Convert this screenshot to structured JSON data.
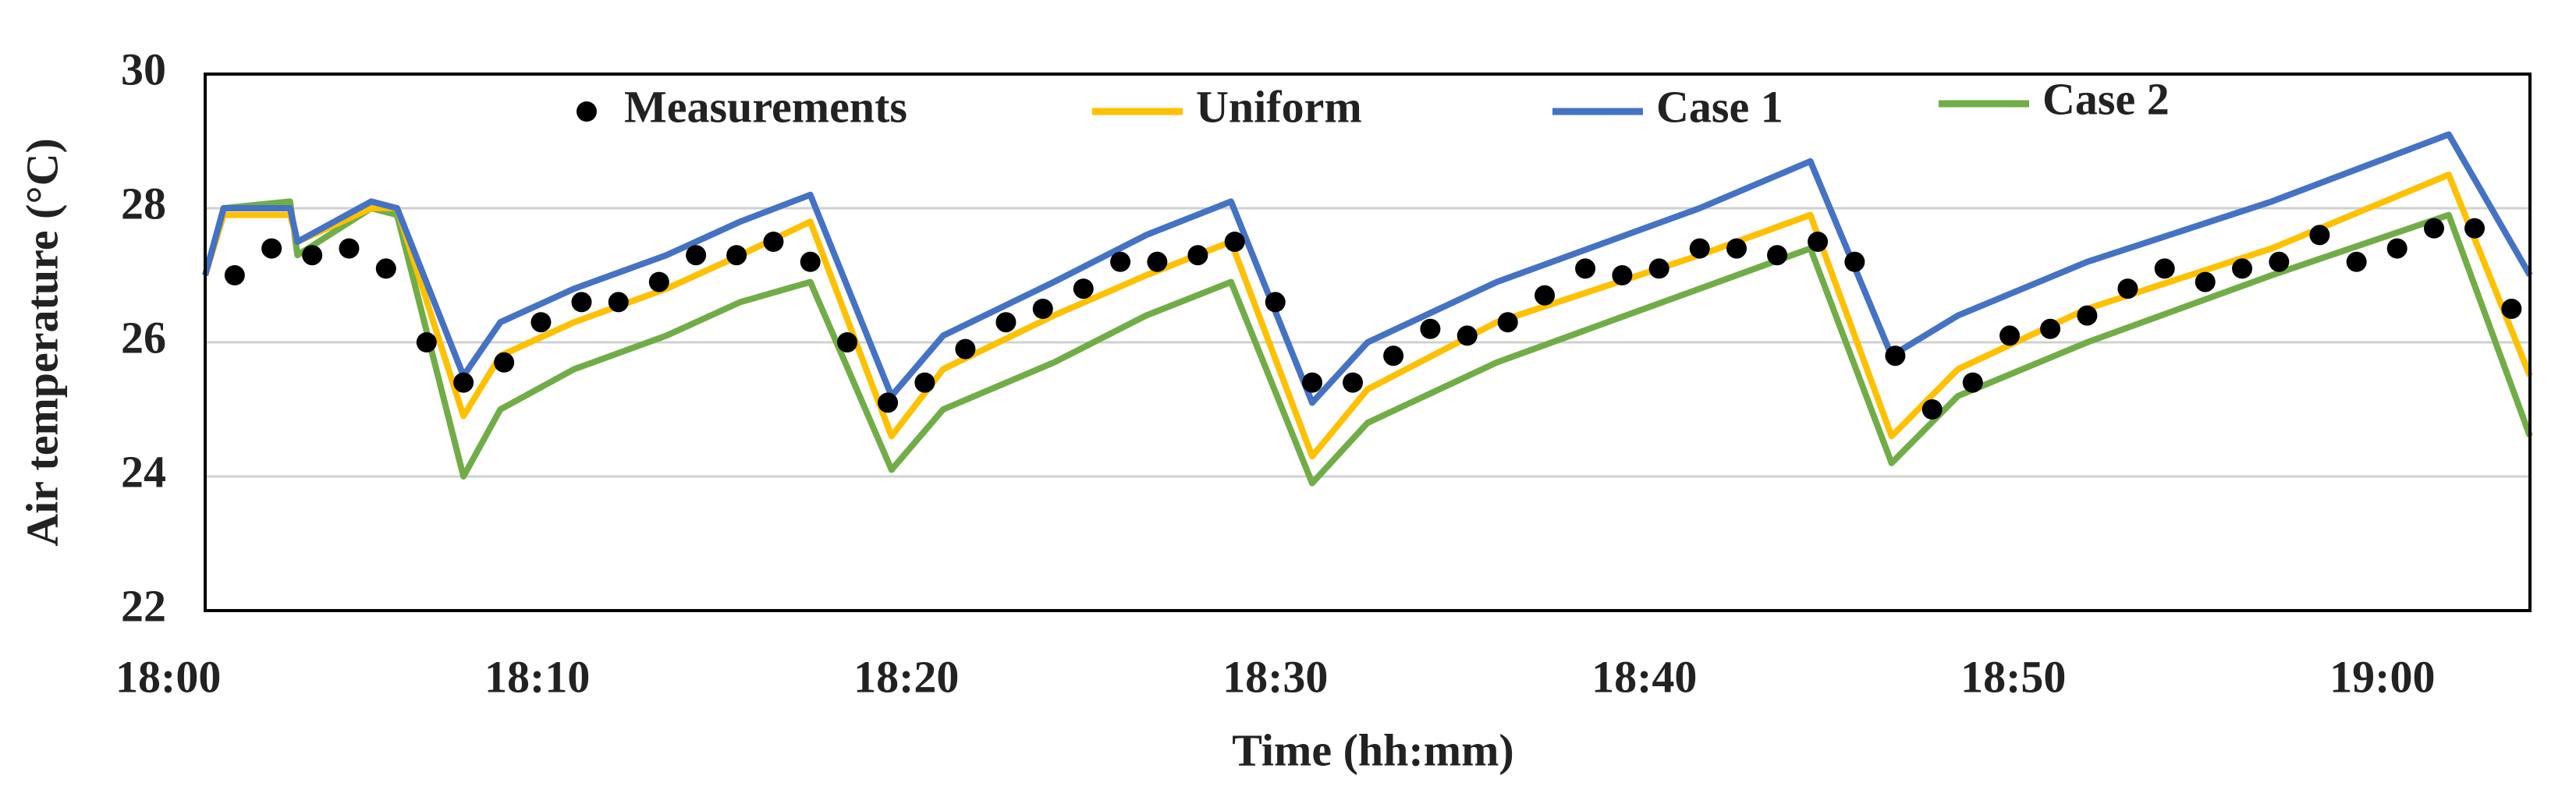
{
  "chart_data": {
    "type": "line",
    "x_label": "Time (hh:mm)",
    "y_label": "Air temperature (°C)",
    "xlim": [
      1,
      64
    ],
    "ylim": [
      22,
      30
    ],
    "xticks": [
      {
        "value": 0,
        "label": "18:00"
      },
      {
        "value": 10,
        "label": "18:10"
      },
      {
        "value": 20,
        "label": "18:20"
      },
      {
        "value": 30,
        "label": "18:30"
      },
      {
        "value": 40,
        "label": "18:40"
      },
      {
        "value": 50,
        "label": "18:50"
      },
      {
        "value": 60,
        "label": "19:00"
      }
    ],
    "yticks": [
      22,
      24,
      26,
      28,
      30
    ],
    "grid": true,
    "legend": "top",
    "series": [
      {
        "name": "Measurements",
        "color": "#000000",
        "mode": "markers",
        "x": [
          1.8,
          2.8,
          3.9,
          4.9,
          5.9,
          7.0,
          8.0,
          9.1,
          10.1,
          11.2,
          12.2,
          13.3,
          14.3,
          15.4,
          16.4,
          17.4,
          18.4,
          19.5,
          20.5,
          21.6,
          22.7,
          23.7,
          24.8,
          25.8,
          26.8,
          27.9,
          28.9,
          30.0,
          31.0,
          32.1,
          33.2,
          34.2,
          35.2,
          36.3,
          37.3,
          38.4,
          39.4,
          40.4,
          41.5,
          42.5,
          43.6,
          44.7,
          45.7,
          46.8,
          47.8,
          48.9,
          49.9,
          51.0,
          52.0,
          53.1,
          54.1,
          55.2,
          56.2,
          57.2,
          58.3,
          59.3,
          60.4,
          61.4,
          62.5,
          63.5
        ],
        "values": [
          27.0,
          27.4,
          27.3,
          27.4,
          27.1,
          26.0,
          25.4,
          25.7,
          26.3,
          26.6,
          26.6,
          26.9,
          27.3,
          27.3,
          27.5,
          27.2,
          26.0,
          25.1,
          25.4,
          25.9,
          26.3,
          26.5,
          26.8,
          27.2,
          27.2,
          27.3,
          27.5,
          26.6,
          25.4,
          25.4,
          25.8,
          26.2,
          26.1,
          26.3,
          26.7,
          27.1,
          27.0,
          27.1,
          27.4,
          27.4,
          27.3,
          27.5,
          27.2,
          25.8,
          25.0,
          25.4,
          26.1,
          26.2,
          26.4,
          26.8,
          27.1,
          26.9,
          27.1,
          27.2,
          27.6,
          27.2,
          27.4,
          27.7,
          27.7,
          26.5
        ]
      },
      {
        "name": "Uniform",
        "color": "#ffc000",
        "mode": "lines",
        "x": [
          1,
          1.5,
          3.3,
          3.5,
          5.5,
          6.2,
          8.0,
          9.0,
          11.0,
          13.5,
          15.5,
          17.4,
          19.6,
          21.0,
          24.0,
          26.5,
          28.8,
          31.0,
          32.5,
          36.0,
          41.5,
          44.5,
          46.7,
          48.5,
          52.0,
          57.0,
          61.8,
          64.0
        ],
        "values": [
          27.0,
          27.9,
          27.9,
          27.5,
          28.0,
          28.0,
          24.9,
          25.8,
          26.3,
          26.8,
          27.3,
          27.8,
          24.6,
          25.6,
          26.4,
          27.0,
          27.5,
          24.3,
          25.3,
          26.3,
          27.3,
          27.9,
          24.6,
          25.6,
          26.5,
          27.4,
          28.5,
          25.5
        ]
      },
      {
        "name": "Case 1",
        "color": "#4472c4",
        "mode": "lines",
        "x": [
          1,
          1.5,
          3.3,
          3.5,
          5.5,
          6.2,
          8.0,
          9.0,
          11.0,
          13.5,
          15.5,
          17.4,
          19.6,
          21.0,
          24.0,
          26.5,
          28.8,
          31.0,
          32.5,
          36.0,
          41.5,
          44.5,
          46.7,
          48.5,
          52.0,
          57.0,
          61.8,
          64.0
        ],
        "values": [
          27.0,
          28.0,
          28.0,
          27.5,
          28.1,
          28.0,
          25.5,
          26.3,
          26.8,
          27.3,
          27.8,
          28.2,
          25.2,
          26.1,
          26.9,
          27.6,
          28.1,
          25.1,
          26.0,
          26.9,
          28.0,
          28.7,
          25.8,
          26.4,
          27.2,
          28.1,
          29.1,
          27.0
        ]
      },
      {
        "name": "Case 2",
        "color": "#70ad47",
        "mode": "lines",
        "x": [
          1,
          1.5,
          3.3,
          3.5,
          5.5,
          6.2,
          8.0,
          9.0,
          11.0,
          13.5,
          15.5,
          17.4,
          19.6,
          21.0,
          24.0,
          26.5,
          28.8,
          31.0,
          32.5,
          36.0,
          41.5,
          44.5,
          46.7,
          48.5,
          52.0,
          57.0,
          61.8,
          64.0
        ],
        "values": [
          27.0,
          28.0,
          28.1,
          27.3,
          28.0,
          27.9,
          24.0,
          25.0,
          25.6,
          26.1,
          26.6,
          26.9,
          24.1,
          25.0,
          25.7,
          26.4,
          26.9,
          23.9,
          24.8,
          25.7,
          26.8,
          27.4,
          24.2,
          25.2,
          26.0,
          27.0,
          27.9,
          24.6
        ]
      }
    ]
  }
}
